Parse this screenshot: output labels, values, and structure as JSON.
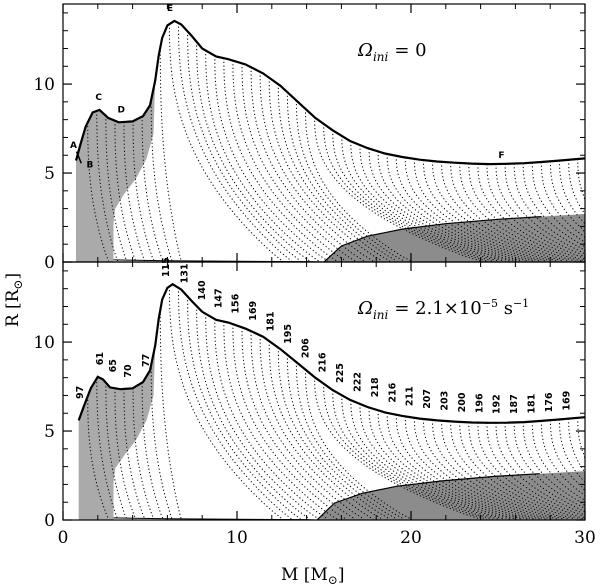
{
  "chart_data": {
    "type": "line",
    "xlabel": "M  [M",
    "xlabel_sub": "⊙",
    "xlabel_close": "]",
    "ylabel": "R  [R",
    "ylabel_sub": "⊙",
    "ylabel_close": "]",
    "xlim": [
      0,
      30
    ],
    "x_ticks": [
      0,
      10,
      20,
      30
    ],
    "panels": [
      {
        "name": "top",
        "annotation": {
          "omega": "Ω",
          "sub": "ini",
          "eq": "=  0"
        },
        "ylim": [
          0,
          14.5
        ],
        "y_ticks": [
          0,
          5,
          10
        ],
        "surface": [
          [
            0.75,
            5.7
          ],
          [
            1.0,
            6.6
          ],
          [
            1.3,
            7.6
          ],
          [
            1.7,
            8.4
          ],
          [
            2.1,
            8.55
          ],
          [
            2.6,
            8.1
          ],
          [
            3.2,
            7.85
          ],
          [
            4.0,
            7.9
          ],
          [
            4.6,
            8.2
          ],
          [
            5.0,
            8.8
          ],
          [
            5.3,
            10.2
          ],
          [
            5.5,
            11.6
          ],
          [
            5.7,
            12.6
          ],
          [
            6.0,
            13.3
          ],
          [
            6.4,
            13.55
          ],
          [
            6.8,
            13.35
          ],
          [
            7.4,
            12.7
          ],
          [
            8.0,
            12.0
          ],
          [
            8.8,
            11.55
          ],
          [
            9.5,
            11.4
          ],
          [
            10.5,
            11.1
          ],
          [
            11.5,
            10.6
          ],
          [
            12.5,
            9.9
          ],
          [
            13.5,
            9.0
          ],
          [
            14.5,
            8.1
          ],
          [
            15.5,
            7.4
          ],
          [
            16.5,
            6.8
          ],
          [
            17.5,
            6.4
          ],
          [
            18.5,
            6.1
          ],
          [
            19.5,
            5.9
          ],
          [
            20.5,
            5.75
          ],
          [
            21.5,
            5.65
          ],
          [
            22.5,
            5.58
          ],
          [
            23.5,
            5.53
          ],
          [
            24.5,
            5.5
          ],
          [
            25.5,
            5.52
          ],
          [
            26.5,
            5.55
          ],
          [
            27.5,
            5.62
          ],
          [
            28.5,
            5.7
          ],
          [
            30.0,
            5.82
          ]
        ],
        "convective_envelope": [
          [
            0.75,
            5.7
          ],
          [
            1.0,
            6.6
          ],
          [
            1.3,
            7.6
          ],
          [
            1.7,
            8.4
          ],
          [
            2.1,
            8.55
          ],
          [
            2.6,
            8.1
          ],
          [
            3.2,
            7.85
          ],
          [
            4.0,
            7.9
          ],
          [
            4.6,
            8.2
          ],
          [
            5.0,
            8.8
          ],
          [
            5.3,
            10.2
          ],
          [
            5.2,
            7.2
          ],
          [
            4.8,
            5.8
          ],
          [
            4.2,
            4.7
          ],
          [
            3.5,
            3.8
          ],
          [
            3.0,
            3.0
          ],
          [
            2.9,
            2.2
          ],
          [
            2.9,
            0.0
          ],
          [
            0.75,
            0.0
          ]
        ],
        "convective_core": [
          [
            15.0,
            0.0
          ],
          [
            16.0,
            0.9
          ],
          [
            17.5,
            1.45
          ],
          [
            19.5,
            1.85
          ],
          [
            22.0,
            2.15
          ],
          [
            25.0,
            2.4
          ],
          [
            27.5,
            2.55
          ],
          [
            30.0,
            2.7
          ],
          [
            30.0,
            0.0
          ]
        ],
        "inner_line": [
          [
            2.9,
            0.12
          ],
          [
            6.0,
            0.07
          ],
          [
            10.0,
            0.04
          ],
          [
            14.0,
            0.02
          ],
          [
            15.0,
            0.0
          ]
        ],
        "labels": [
          {
            "text": "A",
            "m": 0.6,
            "r": 6.4
          },
          {
            "text": "B",
            "m": 1.55,
            "r": 5.3
          },
          {
            "text": "C",
            "m": 2.05,
            "r": 9.1
          },
          {
            "text": "D",
            "m": 3.35,
            "r": 8.4
          },
          {
            "text": "E",
            "m": 6.15,
            "r": 14.1
          },
          {
            "text": "F",
            "m": 25.2,
            "r": 5.85
          }
        ]
      },
      {
        "name": "bottom",
        "annotation": {
          "omega": "Ω",
          "sub": "ini",
          "eq": "=  2.1×10",
          "exp": "−5",
          "unit": " s",
          "unit_exp": "−1"
        },
        "ylim": [
          0,
          14.5
        ],
        "y_ticks": [
          0,
          5,
          10
        ],
        "surface": [
          [
            0.9,
            5.6
          ],
          [
            1.2,
            6.4
          ],
          [
            1.6,
            7.4
          ],
          [
            2.0,
            8.05
          ],
          [
            2.3,
            7.9
          ],
          [
            2.7,
            7.45
          ],
          [
            3.3,
            7.35
          ],
          [
            4.0,
            7.4
          ],
          [
            4.6,
            7.75
          ],
          [
            5.0,
            8.4
          ],
          [
            5.3,
            9.8
          ],
          [
            5.5,
            11.3
          ],
          [
            5.7,
            12.4
          ],
          [
            6.0,
            13.05
          ],
          [
            6.3,
            13.25
          ],
          [
            6.8,
            12.95
          ],
          [
            7.4,
            12.3
          ],
          [
            8.0,
            11.7
          ],
          [
            8.8,
            11.25
          ],
          [
            9.5,
            11.1
          ],
          [
            10.5,
            10.75
          ],
          [
            11.5,
            10.3
          ],
          [
            12.5,
            9.6
          ],
          [
            13.5,
            8.8
          ],
          [
            14.5,
            8.0
          ],
          [
            15.5,
            7.3
          ],
          [
            16.5,
            6.75
          ],
          [
            17.5,
            6.35
          ],
          [
            18.5,
            6.05
          ],
          [
            19.5,
            5.85
          ],
          [
            20.5,
            5.7
          ],
          [
            21.5,
            5.6
          ],
          [
            22.5,
            5.53
          ],
          [
            23.5,
            5.48
          ],
          [
            24.5,
            5.46
          ],
          [
            25.5,
            5.47
          ],
          [
            26.5,
            5.5
          ],
          [
            27.5,
            5.57
          ],
          [
            28.5,
            5.65
          ],
          [
            30.0,
            5.78
          ]
        ],
        "convective_envelope": [
          [
            0.9,
            5.6
          ],
          [
            1.2,
            6.4
          ],
          [
            1.6,
            7.4
          ],
          [
            2.0,
            8.05
          ],
          [
            2.3,
            7.9
          ],
          [
            2.7,
            7.45
          ],
          [
            3.3,
            7.35
          ],
          [
            4.0,
            7.4
          ],
          [
            4.6,
            7.75
          ],
          [
            5.0,
            8.4
          ],
          [
            5.3,
            9.8
          ],
          [
            5.2,
            7.0
          ],
          [
            4.8,
            5.6
          ],
          [
            4.2,
            4.5
          ],
          [
            3.5,
            3.6
          ],
          [
            3.0,
            2.9
          ],
          [
            2.9,
            2.1
          ],
          [
            2.9,
            0.0
          ],
          [
            0.9,
            0.0
          ]
        ],
        "convective_core": [
          [
            14.6,
            0.0
          ],
          [
            15.6,
            0.95
          ],
          [
            17.2,
            1.5
          ],
          [
            19.2,
            1.9
          ],
          [
            21.8,
            2.2
          ],
          [
            24.8,
            2.45
          ],
          [
            27.4,
            2.6
          ],
          [
            30.0,
            2.75
          ],
          [
            30.0,
            0.0
          ]
        ],
        "inner_line": [
          [
            2.9,
            0.12
          ],
          [
            6.0,
            0.07
          ],
          [
            10.0,
            0.04
          ],
          [
            14.0,
            0.02
          ],
          [
            14.6,
            0.0
          ]
        ],
        "velocity_labels": [
          {
            "text": "97",
            "m": 1.15,
            "r": 6.8
          },
          {
            "text": "61",
            "m": 2.3,
            "r": 8.7
          },
          {
            "text": "65",
            "m": 3.05,
            "r": 8.3
          },
          {
            "text": "70",
            "m": 3.9,
            "r": 8.0
          },
          {
            "text": "77",
            "m": 4.95,
            "r": 8.6
          },
          {
            "text": "115",
            "m": 6.1,
            "r": 13.65
          },
          {
            "text": "131",
            "m": 7.15,
            "r": 13.3
          },
          {
            "text": "140",
            "m": 8.15,
            "r": 12.35
          },
          {
            "text": "147",
            "m": 9.1,
            "r": 11.9
          },
          {
            "text": "156",
            "m": 10.1,
            "r": 11.6
          },
          {
            "text": "169",
            "m": 11.1,
            "r": 11.2
          },
          {
            "text": "181",
            "m": 12.1,
            "r": 10.6
          },
          {
            "text": "195",
            "m": 13.1,
            "r": 9.9
          },
          {
            "text": "206",
            "m": 14.1,
            "r": 9.1
          },
          {
            "text": "216",
            "m": 15.1,
            "r": 8.3
          },
          {
            "text": "225",
            "m": 16.1,
            "r": 7.7
          },
          {
            "text": "222",
            "m": 17.1,
            "r": 7.2
          },
          {
            "text": "218",
            "m": 18.1,
            "r": 6.9
          },
          {
            "text": "216",
            "m": 19.1,
            "r": 6.6
          },
          {
            "text": "211",
            "m": 20.1,
            "r": 6.4
          },
          {
            "text": "207",
            "m": 21.1,
            "r": 6.25
          },
          {
            "text": "203",
            "m": 22.1,
            "r": 6.15
          },
          {
            "text": "200",
            "m": 23.1,
            "r": 6.05
          },
          {
            "text": "196",
            "m": 24.1,
            "r": 6.0
          },
          {
            "text": "192",
            "m": 25.1,
            "r": 5.95
          },
          {
            "text": "187",
            "m": 26.1,
            "r": 5.95
          },
          {
            "text": "181",
            "m": 27.1,
            "r": 5.98
          },
          {
            "text": "176",
            "m": 28.1,
            "r": 6.05
          },
          {
            "text": "169",
            "m": 29.1,
            "r": 6.15
          }
        ]
      }
    ]
  }
}
